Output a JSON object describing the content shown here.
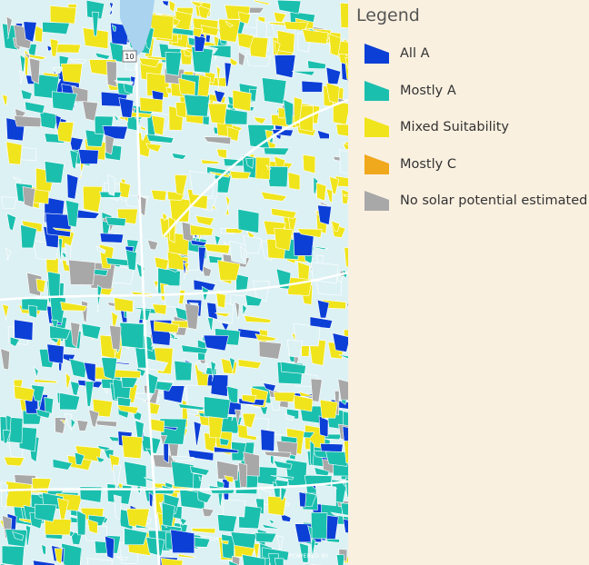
{
  "legend": {
    "title": "Legend",
    "items": [
      {
        "label": "All A",
        "color": "#0b3fd6"
      },
      {
        "label": "Mostly A",
        "color": "#1bbfae"
      },
      {
        "label": "Mixed Suitability",
        "color": "#f0e41c"
      },
      {
        "label": "Mostly C",
        "color": "#f0a81c"
      },
      {
        "label": "No solar potential estimated",
        "color": "#a8a8a8"
      }
    ]
  },
  "map": {
    "route_shield": "10",
    "attribution": "POWERED BY"
  }
}
